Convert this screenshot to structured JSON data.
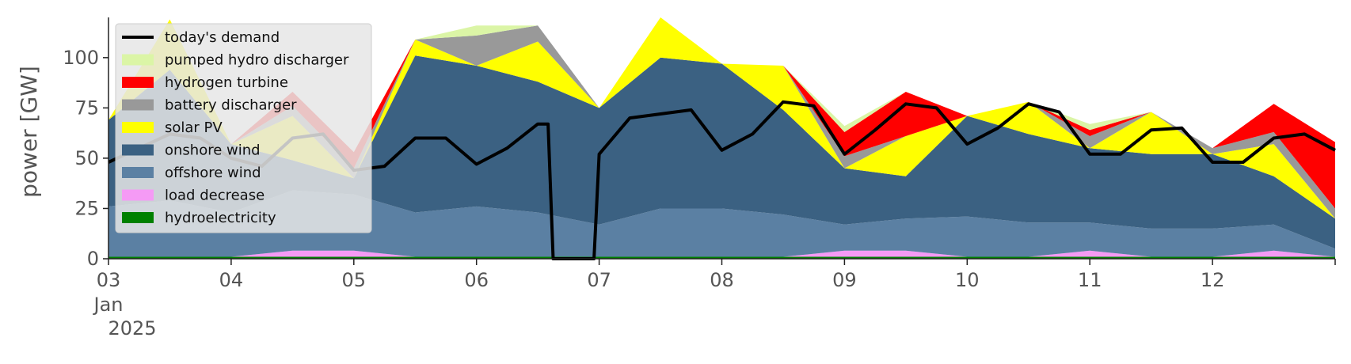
{
  "chart_data": {
    "type": "area",
    "title": "",
    "xlabel": "",
    "ylabel": "power [GW]",
    "ylim": [
      0,
      120
    ],
    "xlim": [
      "2025-01-03",
      "2025-01-13"
    ],
    "yticks": [
      0,
      25,
      50,
      75,
      100
    ],
    "xticks": [
      {
        "date": "2025-01-03",
        "label": "03"
      },
      {
        "date": "2025-01-04",
        "label": "04"
      },
      {
        "date": "2025-01-05",
        "label": "05"
      },
      {
        "date": "2025-01-06",
        "label": "06"
      },
      {
        "date": "2025-01-07",
        "label": "07"
      },
      {
        "date": "2025-01-08",
        "label": "08"
      },
      {
        "date": "2025-01-09",
        "label": "09"
      },
      {
        "date": "2025-01-10",
        "label": "10"
      },
      {
        "date": "2025-01-11",
        "label": "11"
      },
      {
        "date": "2025-01-12",
        "label": "12"
      }
    ],
    "xtick_sublabels": [
      "Jan",
      "2025"
    ],
    "grid": false,
    "legend_position": "top-left",
    "x": [
      "2025-01-03 00:00",
      "2025-01-03 12:00",
      "2025-01-04 00:00",
      "2025-01-04 12:00",
      "2025-01-05 00:00",
      "2025-01-05 12:00",
      "2025-01-06 00:00",
      "2025-01-06 12:00",
      "2025-01-07 00:00",
      "2025-01-07 12:00",
      "2025-01-08 00:00",
      "2025-01-08 12:00",
      "2025-01-09 00:00",
      "2025-01-09 12:00",
      "2025-01-10 00:00",
      "2025-01-10 12:00",
      "2025-01-11 00:00",
      "2025-01-11 12:00",
      "2025-01-12 00:00",
      "2025-01-12 12:00",
      "2025-01-13 00:00"
    ],
    "series": [
      {
        "name": "hydroelectricity",
        "color": "#008000",
        "values": [
          1,
          1,
          1,
          1,
          1,
          1,
          1,
          1,
          1,
          1,
          1,
          1,
          1,
          1,
          1,
          1,
          1,
          1,
          1,
          1,
          1
        ]
      },
      {
        "name": "load decrease",
        "color": "#f59af5",
        "values": [
          0,
          0,
          0,
          3,
          3,
          0,
          0,
          0,
          0,
          0,
          0,
          0,
          3,
          3,
          0,
          0,
          3,
          0,
          0,
          3,
          0
        ]
      },
      {
        "name": "offshore wind",
        "color": "#5b80a3",
        "values": [
          25,
          28,
          22,
          30,
          28,
          22,
          25,
          22,
          16,
          24,
          24,
          21,
          13,
          16,
          20,
          17,
          14,
          14,
          14,
          13,
          4
        ]
      },
      {
        "name": "onshore wind",
        "color": "#3b6182",
        "values": [
          43,
          65,
          34,
          15,
          8,
          78,
          70,
          65,
          58,
          75,
          72,
          52,
          28,
          21,
          50,
          44,
          37,
          37,
          37,
          24,
          15
        ]
      },
      {
        "name": "solar PV",
        "color": "#ffff00",
        "values": [
          0,
          25,
          0,
          22,
          0,
          8,
          0,
          20,
          0,
          20,
          0,
          22,
          0,
          20,
          0,
          16,
          0,
          21,
          0,
          16,
          0
        ]
      },
      {
        "name": "battery discharger",
        "color": "#999999",
        "values": [
          0,
          0,
          0,
          5,
          5,
          0,
          15,
          8,
          0,
          0,
          0,
          0,
          6,
          0,
          0,
          0,
          6,
          0,
          3,
          6,
          5
        ]
      },
      {
        "name": "hydrogen turbine",
        "color": "#ff0000",
        "values": [
          0,
          0,
          0,
          7,
          8,
          0,
          0,
          0,
          0,
          0,
          0,
          0,
          12,
          22,
          0,
          0,
          3,
          0,
          0,
          14,
          33
        ]
      },
      {
        "name": "pumped hydro discharger",
        "color": "#dbf5a6",
        "values": [
          0,
          0,
          0,
          0,
          0,
          0,
          5,
          0,
          0,
          0,
          0,
          0,
          3,
          0,
          0,
          0,
          3,
          0,
          0,
          0,
          0
        ]
      }
    ],
    "demand_series": {
      "name": "today's demand",
      "color": "#000000",
      "x": [
        "2025-01-03 00:00",
        "2025-01-03 06:00",
        "2025-01-03 12:00",
        "2025-01-03 18:00",
        "2025-01-04 00:00",
        "2025-01-04 06:00",
        "2025-01-04 12:00",
        "2025-01-04 18:00",
        "2025-01-05 00:00",
        "2025-01-05 06:00",
        "2025-01-05 12:00",
        "2025-01-05 18:00",
        "2025-01-06 00:00",
        "2025-01-06 06:00",
        "2025-01-06 12:00",
        "2025-01-06 14:00",
        "2025-01-06 15:00",
        "2025-01-06 23:00",
        "2025-01-07 00:00",
        "2025-01-07 06:00",
        "2025-01-07 12:00",
        "2025-01-07 18:00",
        "2025-01-08 00:00",
        "2025-01-08 06:00",
        "2025-01-08 12:00",
        "2025-01-08 18:00",
        "2025-01-09 00:00",
        "2025-01-09 06:00",
        "2025-01-09 12:00",
        "2025-01-09 18:00",
        "2025-01-10 00:00",
        "2025-01-10 06:00",
        "2025-01-10 12:00",
        "2025-01-10 18:00",
        "2025-01-11 00:00",
        "2025-01-11 06:00",
        "2025-01-11 12:00",
        "2025-01-11 18:00",
        "2025-01-12 00:00",
        "2025-01-12 06:00",
        "2025-01-12 12:00",
        "2025-01-12 18:00",
        "2025-01-13 00:00"
      ],
      "values": [
        48,
        55,
        62,
        60,
        50,
        46,
        60,
        62,
        44,
        46,
        60,
        60,
        47,
        55,
        67,
        67,
        0,
        0,
        52,
        70,
        72,
        74,
        54,
        62,
        78,
        76,
        52,
        64,
        77,
        75,
        57,
        65,
        77,
        73,
        52,
        52,
        64,
        65,
        48,
        48,
        60,
        62,
        54
      ]
    }
  }
}
